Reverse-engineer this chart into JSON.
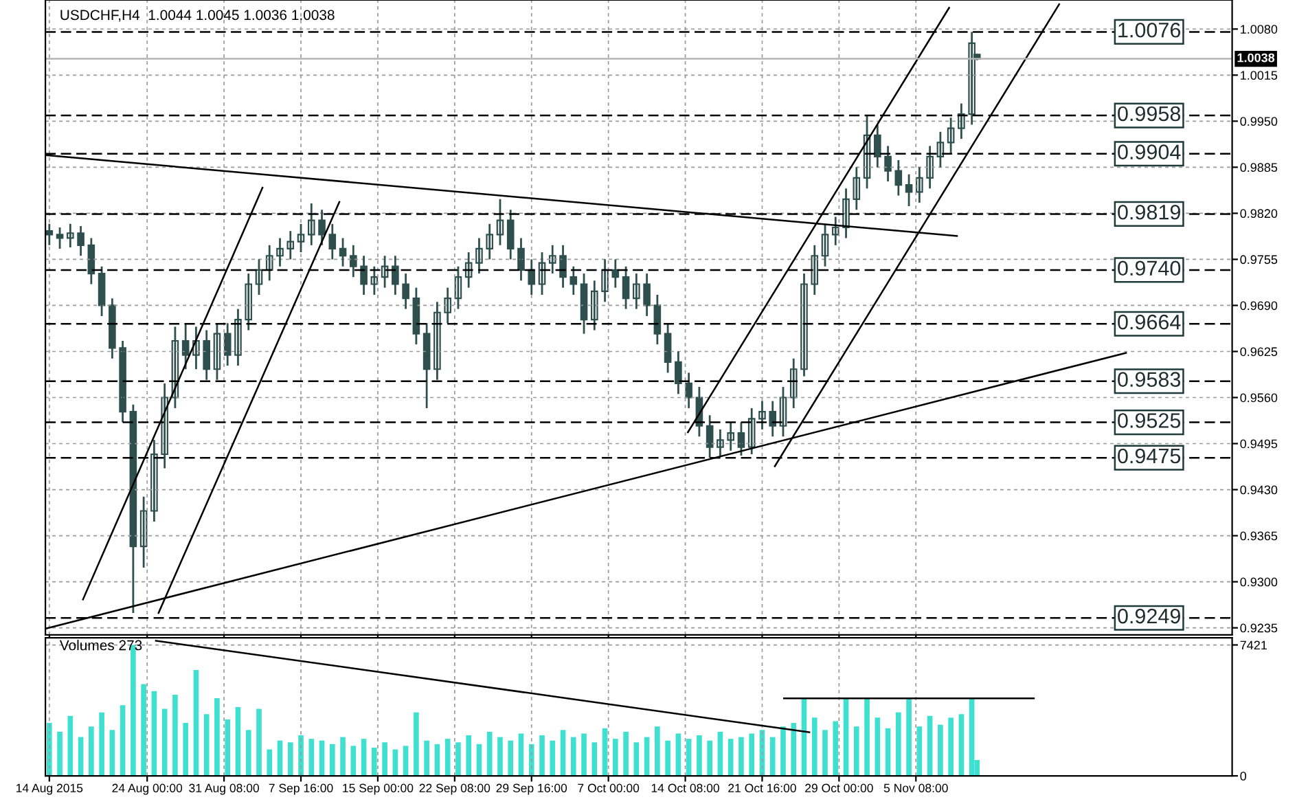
{
  "chart_data": [
    {
      "type": "candlestick",
      "color": "#2f4f4f",
      "annotations": [
        "USDCHF,H4  1.0044 1.0045 1.0036 1.0038"
      ],
      "x": [
        "2015-08-14T16:00",
        "2015-08-15T16:00",
        "2015-08-16T16:00",
        "2015-08-17T16:00",
        "2015-08-18T16:00",
        "2015-08-19T16:00",
        "2015-08-20T16:00",
        "2015-08-21T16:00",
        "2015-08-22T16:00",
        "2015-08-23T16:00",
        "2015-08-24T16:00",
        "2015-08-25T16:00",
        "2015-08-26T16:00",
        "2015-08-27T16:00",
        "2015-08-28T16:00",
        "2015-08-29T16:00",
        "2015-08-30T16:00",
        "2015-08-31T16:00",
        "2015-09-01T16:00",
        "2015-09-02T16:00",
        "2015-09-03T16:00",
        "2015-09-04T16:00",
        "2015-09-05T16:00",
        "2015-09-06T16:00",
        "2015-09-07T16:00",
        "2015-09-08T16:00",
        "2015-09-09T16:00",
        "2015-09-10T16:00",
        "2015-09-11T16:00",
        "2015-09-12T16:00",
        "2015-09-13T16:00",
        "2015-09-14T16:00",
        "2015-09-15T16:00",
        "2015-09-16T16:00",
        "2015-09-17T16:00",
        "2015-09-18T16:00",
        "2015-09-19T16:00",
        "2015-09-20T16:00",
        "2015-09-21T16:00",
        "2015-09-22T16:00",
        "2015-09-23T16:00",
        "2015-09-24T16:00",
        "2015-09-25T16:00",
        "2015-09-26T16:00",
        "2015-09-27T16:00",
        "2015-09-28T16:00",
        "2015-09-29T16:00",
        "2015-09-30T16:00",
        "2015-10-01T16:00",
        "2015-10-02T16:00",
        "2015-10-03T16:00",
        "2015-10-04T16:00",
        "2015-10-05T16:00",
        "2015-10-06T16:00",
        "2015-10-07T16:00",
        "2015-10-08T16:00",
        "2015-10-09T16:00",
        "2015-10-10T16:00",
        "2015-10-11T16:00",
        "2015-10-12T16:00",
        "2015-10-13T16:00",
        "2015-10-14T16:00",
        "2015-10-15T16:00",
        "2015-10-16T16:00",
        "2015-10-17T16:00",
        "2015-10-18T16:00",
        "2015-10-19T16:00",
        "2015-10-20T16:00",
        "2015-10-21T16:00",
        "2015-10-22T16:00",
        "2015-10-23T16:00",
        "2015-10-24T16:00",
        "2015-10-25T16:00",
        "2015-10-26T16:00",
        "2015-10-27T16:00",
        "2015-10-28T16:00",
        "2015-10-29T16:00",
        "2015-10-30T16:00",
        "2015-10-31T16:00",
        "2015-11-01T16:00",
        "2015-11-02T16:00",
        "2015-11-03T16:00",
        "2015-11-04T16:00",
        "2015-11-05T16:00",
        "2015-11-06T16:00",
        "2015-11-07T16:00",
        "2015-11-08T16:00",
        "2015-11-09T16:00",
        "2015-11-10T16:00",
        "2015-11-11T04:00"
      ],
      "ohlc": [
        [
          0.9795,
          0.9805,
          0.9775,
          0.979
        ],
        [
          0.979,
          0.98,
          0.977,
          0.9785
        ],
        [
          0.9785,
          0.9805,
          0.9772,
          0.9792
        ],
        [
          0.9792,
          0.9802,
          0.976,
          0.9775
        ],
        [
          0.9775,
          0.9785,
          0.972,
          0.9735
        ],
        [
          0.9735,
          0.9745,
          0.9675,
          0.969
        ],
        [
          0.969,
          0.97,
          0.9615,
          0.963
        ],
        [
          0.963,
          0.964,
          0.9525,
          0.954
        ],
        [
          0.954,
          0.955,
          0.9256,
          0.935
        ],
        [
          0.935,
          0.942,
          0.932,
          0.94
        ],
        [
          0.94,
          0.95,
          0.9385,
          0.948
        ],
        [
          0.948,
          0.958,
          0.946,
          0.956
        ],
        [
          0.956,
          0.966,
          0.9545,
          0.964
        ],
        [
          0.964,
          0.9665,
          0.96,
          0.962
        ],
        [
          0.962,
          0.966,
          0.96,
          0.964
        ],
        [
          0.964,
          0.9655,
          0.9585,
          0.96
        ],
        [
          0.96,
          0.9665,
          0.9585,
          0.965
        ],
        [
          0.965,
          0.9665,
          0.9605,
          0.962
        ],
        [
          0.962,
          0.9685,
          0.9605,
          0.967
        ],
        [
          0.967,
          0.9735,
          0.9655,
          0.972
        ],
        [
          0.972,
          0.9755,
          0.9705,
          0.974
        ],
        [
          0.974,
          0.9775,
          0.9725,
          0.976
        ],
        [
          0.976,
          0.9785,
          0.9745,
          0.977
        ],
        [
          0.977,
          0.9795,
          0.9755,
          0.978
        ],
        [
          0.978,
          0.9805,
          0.9765,
          0.979
        ],
        [
          0.979,
          0.9834,
          0.9775,
          0.981
        ],
        [
          0.981,
          0.9825,
          0.9775,
          0.979
        ],
        [
          0.979,
          0.9805,
          0.9755,
          0.977
        ],
        [
          0.977,
          0.9785,
          0.9745,
          0.976
        ],
        [
          0.976,
          0.9775,
          0.973,
          0.9745
        ],
        [
          0.9745,
          0.976,
          0.9705,
          0.972
        ],
        [
          0.972,
          0.9745,
          0.9705,
          0.973
        ],
        [
          0.973,
          0.976,
          0.9715,
          0.9745
        ],
        [
          0.9745,
          0.976,
          0.9705,
          0.972
        ],
        [
          0.972,
          0.9735,
          0.9685,
          0.97
        ],
        [
          0.97,
          0.9715,
          0.9635,
          0.965
        ],
        [
          0.965,
          0.9665,
          0.9545,
          0.96
        ],
        [
          0.96,
          0.9695,
          0.9585,
          0.968
        ],
        [
          0.968,
          0.9715,
          0.9665,
          0.97
        ],
        [
          0.97,
          0.9745,
          0.9685,
          0.973
        ],
        [
          0.973,
          0.9765,
          0.9715,
          0.975
        ],
        [
          0.975,
          0.9785,
          0.9735,
          0.977
        ],
        [
          0.977,
          0.9805,
          0.9755,
          0.979
        ],
        [
          0.979,
          0.984,
          0.9775,
          0.981
        ],
        [
          0.981,
          0.9825,
          0.9755,
          0.977
        ],
        [
          0.977,
          0.9785,
          0.9725,
          0.974
        ],
        [
          0.974,
          0.9755,
          0.9705,
          0.972
        ],
        [
          0.972,
          0.9765,
          0.9705,
          0.975
        ],
        [
          0.975,
          0.9775,
          0.9735,
          0.976
        ],
        [
          0.976,
          0.9775,
          0.9715,
          0.973
        ],
        [
          0.973,
          0.9745,
          0.9705,
          0.972
        ],
        [
          0.972,
          0.9735,
          0.965,
          0.967
        ],
        [
          0.967,
          0.9725,
          0.9655,
          0.971
        ],
        [
          0.971,
          0.9755,
          0.9695,
          0.974
        ],
        [
          0.974,
          0.9755,
          0.9715,
          0.973
        ],
        [
          0.973,
          0.9745,
          0.9685,
          0.97
        ],
        [
          0.97,
          0.9735,
          0.9685,
          0.972
        ],
        [
          0.972,
          0.9735,
          0.9675,
          0.969
        ],
        [
          0.969,
          0.9705,
          0.9635,
          0.965
        ],
        [
          0.965,
          0.9665,
          0.9595,
          0.961
        ],
        [
          0.961,
          0.9625,
          0.9565,
          0.958
        ],
        [
          0.958,
          0.9595,
          0.9545,
          0.956
        ],
        [
          0.956,
          0.9575,
          0.9505,
          0.952
        ],
        [
          0.952,
          0.9535,
          0.9475,
          0.949
        ],
        [
          0.949,
          0.9515,
          0.9478,
          0.95
        ],
        [
          0.95,
          0.9525,
          0.9485,
          0.951
        ],
        [
          0.951,
          0.9525,
          0.9478,
          0.949
        ],
        [
          0.949,
          0.9545,
          0.948,
          0.953
        ],
        [
          0.953,
          0.9555,
          0.9515,
          0.954
        ],
        [
          0.954,
          0.9555,
          0.9505,
          0.952
        ],
        [
          0.952,
          0.9575,
          0.9505,
          0.956
        ],
        [
          0.956,
          0.9615,
          0.9545,
          0.96
        ],
        [
          0.96,
          0.9735,
          0.959,
          0.972
        ],
        [
          0.972,
          0.9775,
          0.9705,
          0.976
        ],
        [
          0.976,
          0.9805,
          0.9745,
          0.979
        ],
        [
          0.979,
          0.9815,
          0.9775,
          0.98
        ],
        [
          0.98,
          0.9855,
          0.9785,
          0.984
        ],
        [
          0.984,
          0.9885,
          0.9825,
          0.987
        ],
        [
          0.987,
          0.9958,
          0.9855,
          0.993
        ],
        [
          0.993,
          0.9945,
          0.9885,
          0.99
        ],
        [
          0.99,
          0.9915,
          0.9865,
          0.988
        ],
        [
          0.988,
          0.9895,
          0.9845,
          0.986
        ],
        [
          0.986,
          0.9875,
          0.983,
          0.985
        ],
        [
          0.985,
          0.9885,
          0.9835,
          0.987
        ],
        [
          0.987,
          0.9915,
          0.9855,
          0.99
        ],
        [
          0.99,
          0.9935,
          0.9885,
          0.992
        ],
        [
          0.992,
          0.9955,
          0.9905,
          0.994
        ],
        [
          0.994,
          0.9975,
          0.9925,
          0.996
        ],
        [
          0.996,
          1.0076,
          0.9945,
          1.006
        ],
        [
          1.0044,
          1.0045,
          1.0036,
          1.0038
        ]
      ],
      "xlim": [
        "2015-08-14T07:00",
        "2015-12-05T12:00"
      ],
      "ylim": [
        0.9225,
        1.0121
      ],
      "xticks": [
        {
          "value": "2015-08-14T16:00",
          "label": null
        },
        {
          "value": "2015-08-24T00:00",
          "label": null
        },
        {
          "value": "2015-08-31T08:00",
          "label": null
        },
        {
          "value": "2015-09-07T16:00",
          "label": null
        },
        {
          "value": "2015-09-15T00:00",
          "label": null
        },
        {
          "value": "2015-09-22T08:00",
          "label": null
        },
        {
          "value": "2015-09-29T16:00",
          "label": null
        },
        {
          "value": "2015-10-07T00:00",
          "label": null
        },
        {
          "value": "2015-10-14T08:00",
          "label": null
        },
        {
          "value": "2015-10-21T16:00",
          "label": null
        },
        {
          "value": "2015-10-29T00:00",
          "label": null
        },
        {
          "value": "2015-11-05T08:00",
          "label": null
        }
      ],
      "yticks": [
        {
          "value": 1.008,
          "label": "1.0080"
        },
        {
          "value": 1.0015,
          "label": "1.0015"
        },
        {
          "value": 0.995,
          "label": "0.9950"
        },
        {
          "value": 0.9885,
          "label": "0.9885"
        },
        {
          "value": 0.982,
          "label": "0.9820"
        },
        {
          "value": 0.9755,
          "label": "0.9755"
        },
        {
          "value": 0.969,
          "label": "0.9690"
        },
        {
          "value": 0.9625,
          "label": "0.9625"
        },
        {
          "value": 0.956,
          "label": "0.9560"
        },
        {
          "value": 0.9495,
          "label": "0.9495"
        },
        {
          "value": 0.943,
          "label": "0.9430"
        },
        {
          "value": 0.9365,
          "label": "0.9365"
        },
        {
          "value": 0.93,
          "label": "0.9300"
        },
        {
          "value": 0.9235,
          "label": "0.9235"
        }
      ],
      "tick_labels": "y",
      "grid": true,
      "series": [
        {
          "type": "line",
          "color": "#000000",
          "x": [
            "2015-08-14T08:00",
            "2015-11-25T09:00"
          ],
          "values": [
            0.9234,
            0.9623
          ]
        },
        {
          "type": "line",
          "color": "#000000",
          "x": [
            "2015-08-14T08:00",
            "2015-11-09T06:00"
          ],
          "values": [
            0.9902,
            0.9788
          ]
        },
        {
          "type": "line",
          "color": "#000000",
          "x": [
            "2015-10-14T14:00",
            "2015-11-08T12:00"
          ],
          "values": [
            0.9511,
            1.011
          ]
        },
        {
          "type": "line",
          "color": "#000000",
          "x": [
            "2015-10-22T21:00",
            "2015-11-19T00:00"
          ],
          "values": [
            0.9463,
            1.0115
          ]
        },
        {
          "type": "line",
          "color": "#000000",
          "x": [
            "2015-08-17T21:00",
            "2015-09-04T00:00"
          ],
          "values": [
            0.9275,
            0.9856
          ]
        },
        {
          "type": "line",
          "color": "#000000",
          "x": [
            "2015-08-25T02:00",
            "2015-09-11T08:00"
          ],
          "values": [
            0.9256,
            0.9836
          ]
        }
      ],
      "ref_lines": [
        {
          "axis": "y",
          "value": 1.0076,
          "label": "1.0076",
          "line_style": "dashed",
          "color": "#000000"
        },
        {
          "axis": "y",
          "value": 0.9958,
          "label": "0.9958",
          "line_style": "dashed",
          "color": "#000000"
        },
        {
          "axis": "y",
          "value": 0.9904,
          "label": "0.9904",
          "line_style": "dashed",
          "color": "#000000"
        },
        {
          "axis": "y",
          "value": 0.9819,
          "label": "0.9819",
          "line_style": "dashed",
          "color": "#000000"
        },
        {
          "axis": "y",
          "value": 0.974,
          "label": "0.9740",
          "line_style": "dashed",
          "color": "#000000"
        },
        {
          "axis": "y",
          "value": 0.9664,
          "label": "0.9664",
          "line_style": "dashed",
          "color": "#000000"
        },
        {
          "axis": "y",
          "value": 0.9583,
          "label": "0.9583",
          "line_style": "dashed",
          "color": "#000000"
        },
        {
          "axis": "y",
          "value": 0.9525,
          "label": "0.9525",
          "line_style": "dashed",
          "color": "#000000"
        },
        {
          "axis": "y",
          "value": 0.9475,
          "label": "0.9475",
          "line_style": "dashed",
          "color": "#000000"
        },
        {
          "axis": "y",
          "value": 0.9249,
          "label": "0.9249",
          "line_style": "dashed",
          "color": "#000000"
        },
        {
          "axis": "y",
          "value": 1.0038,
          "label": "1.0038",
          "line_style": "solid",
          "color": "#b4b4b4"
        }
      ]
    },
    {
      "type": "bar",
      "annotations": [
        "Volumes 273"
      ],
      "xlim": [
        "2015-08-14T07:00",
        "2015-12-05T12:00"
      ],
      "ylim": [
        0,
        7830
      ],
      "xticks": [
        {
          "value": "2015-08-14T16:00",
          "label": "14 Aug 2015"
        },
        {
          "value": "2015-08-24T00:00",
          "label": "24 Aug 00:00"
        },
        {
          "value": "2015-08-31T08:00",
          "label": "31 Aug 08:00"
        },
        {
          "value": "2015-09-07T16:00",
          "label": "7 Sep 16:00"
        },
        {
          "value": "2015-09-15T00:00",
          "label": "15 Sep 00:00"
        },
        {
          "value": "2015-09-22T08:00",
          "label": "22 Sep 08:00"
        },
        {
          "value": "2015-09-29T16:00",
          "label": "29 Sep 16:00"
        },
        {
          "value": "2015-10-07T00:00",
          "label": "7 Oct 00:00"
        },
        {
          "value": "2015-10-14T08:00",
          "label": "14 Oct 08:00"
        },
        {
          "value": "2015-10-21T16:00",
          "label": "21 Oct 16:00"
        },
        {
          "value": "2015-10-29T00:00",
          "label": "29 Oct 00:00"
        },
        {
          "value": "2015-11-05T08:00",
          "label": "5 Nov 08:00"
        }
      ],
      "yticks": [
        7421,
        0
      ],
      "grid": true,
      "series": [
        {
          "type": "bar",
          "color": "#40e0d0",
          "x": [
            "2015-08-14T16:00",
            "2015-08-15T16:00",
            "2015-08-16T16:00",
            "2015-08-17T16:00",
            "2015-08-18T16:00",
            "2015-08-19T16:00",
            "2015-08-20T16:00",
            "2015-08-21T16:00",
            "2015-08-22T16:00",
            "2015-08-23T16:00",
            "2015-08-24T16:00",
            "2015-08-25T16:00",
            "2015-08-26T16:00",
            "2015-08-27T16:00",
            "2015-08-28T16:00",
            "2015-08-29T16:00",
            "2015-08-30T16:00",
            "2015-08-31T16:00",
            "2015-09-01T16:00",
            "2015-09-02T16:00",
            "2015-09-03T16:00",
            "2015-09-04T16:00",
            "2015-09-05T16:00",
            "2015-09-06T16:00",
            "2015-09-07T16:00",
            "2015-09-08T16:00",
            "2015-09-09T16:00",
            "2015-09-10T16:00",
            "2015-09-11T16:00",
            "2015-09-12T16:00",
            "2015-09-13T16:00",
            "2015-09-14T16:00",
            "2015-09-15T16:00",
            "2015-09-16T16:00",
            "2015-09-17T16:00",
            "2015-09-18T16:00",
            "2015-09-19T16:00",
            "2015-09-20T16:00",
            "2015-09-21T16:00",
            "2015-09-22T16:00",
            "2015-09-23T16:00",
            "2015-09-24T16:00",
            "2015-09-25T16:00",
            "2015-09-26T16:00",
            "2015-09-27T16:00",
            "2015-09-28T16:00",
            "2015-09-29T16:00",
            "2015-09-30T16:00",
            "2015-10-01T16:00",
            "2015-10-02T16:00",
            "2015-10-03T16:00",
            "2015-10-04T16:00",
            "2015-10-05T16:00",
            "2015-10-06T16:00",
            "2015-10-07T16:00",
            "2015-10-08T16:00",
            "2015-10-09T16:00",
            "2015-10-10T16:00",
            "2015-10-11T16:00",
            "2015-10-12T16:00",
            "2015-10-13T16:00",
            "2015-10-14T16:00",
            "2015-10-15T16:00",
            "2015-10-16T16:00",
            "2015-10-17T16:00",
            "2015-10-18T16:00",
            "2015-10-19T16:00",
            "2015-10-20T16:00",
            "2015-10-21T16:00",
            "2015-10-22T16:00",
            "2015-10-23T16:00",
            "2015-10-24T16:00",
            "2015-10-25T16:00",
            "2015-10-26T16:00",
            "2015-10-27T16:00",
            "2015-10-28T16:00",
            "2015-10-29T16:00",
            "2015-10-30T16:00",
            "2015-10-31T16:00",
            "2015-11-01T16:00",
            "2015-11-02T16:00",
            "2015-11-03T16:00",
            "2015-11-04T16:00",
            "2015-11-05T16:00",
            "2015-11-06T16:00",
            "2015-11-07T16:00",
            "2015-11-08T16:00",
            "2015-11-09T16:00",
            "2015-11-10T16:00",
            "2015-11-11T04:00"
          ],
          "values": [
            3000,
            2500,
            3400,
            2200,
            2800,
            3600,
            2600,
            4000,
            7421,
            5200,
            4800,
            3800,
            4600,
            3000,
            6000,
            3500,
            4400,
            3200,
            3900,
            2600,
            3800,
            1500,
            2000,
            1900,
            2300,
            2100,
            2000,
            1800,
            2200,
            1700,
            2100,
            1600,
            1900,
            1500,
            1700,
            3600,
            2000,
            1800,
            2100,
            1900,
            2300,
            1800,
            2500,
            2200,
            2000,
            2400,
            1800,
            2300,
            2000,
            2600,
            2200,
            2400,
            1900,
            2700,
            2100,
            2500,
            1900,
            2200,
            2800,
            2000,
            2400,
            2100,
            2300,
            2000,
            2500,
            2100,
            2200,
            2400,
            2600,
            2200,
            2800,
            3000,
            4390,
            3300,
            2600,
            3100,
            4390,
            2800,
            4390,
            3300,
            2700,
            3600,
            4390,
            2800,
            3400,
            2900,
            3300,
            3500,
            4390,
            900
          ]
        },
        {
          "type": "line",
          "color": "#000000",
          "x": [
            "2015-08-24T20:00",
            "2015-10-26T04:00"
          ],
          "values": [
            7660,
            2470
          ]
        },
        {
          "type": "line",
          "color": "#000000",
          "x": [
            "2015-10-23T18:00",
            "2015-11-16T14:00"
          ],
          "values": [
            4390,
            4390
          ]
        }
      ]
    }
  ]
}
